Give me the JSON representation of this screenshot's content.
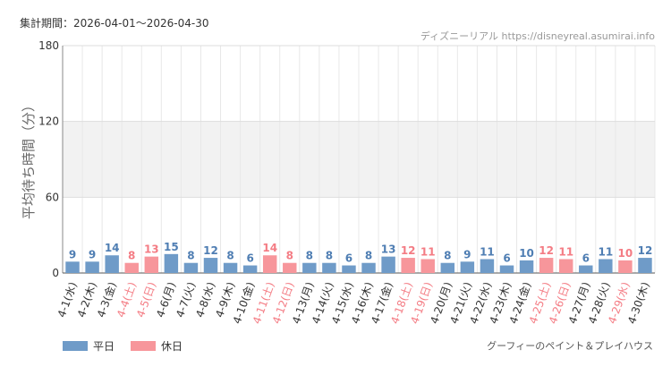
{
  "header": {
    "period_label": "集計期間：2026-04-01～2026-04-30",
    "site_label": "ディズニーリアル https://disneyreal.asumirai.info"
  },
  "footer": {
    "attraction_name": "グーフィーのペイント＆プレイハウス"
  },
  "colors": {
    "weekday": "#6f9bc8",
    "holiday": "#f7969b",
    "weekday_text": "#4f7eb3",
    "holiday_text": "#f47c84"
  },
  "chart_data": {
    "type": "bar",
    "ylabel": "平均待ち時間（分）",
    "ylim": [
      0,
      180
    ],
    "yticks": [
      0,
      60,
      120,
      180
    ],
    "highlight_band": [
      60,
      120
    ],
    "grid": true,
    "legend": {
      "placement": "bottom-left",
      "entries": [
        {
          "key": "weekday",
          "label": "平日"
        },
        {
          "key": "holiday",
          "label": "休日"
        }
      ]
    },
    "categories": [
      "4-1(水)",
      "4-2(木)",
      "4-3(金)",
      "4-4(土)",
      "4-5(日)",
      "4-6(月)",
      "4-7(火)",
      "4-8(水)",
      "4-9(木)",
      "4-10(金)",
      "4-11(土)",
      "4-12(日)",
      "4-13(月)",
      "4-14(火)",
      "4-15(水)",
      "4-16(木)",
      "4-17(金)",
      "4-18(土)",
      "4-19(日)",
      "4-20(月)",
      "4-21(火)",
      "4-22(水)",
      "4-23(木)",
      "4-24(金)",
      "4-25(土)",
      "4-26(日)",
      "4-27(月)",
      "4-28(火)",
      "4-29(水)",
      "4-30(木)"
    ],
    "values": [
      9,
      9,
      14,
      8,
      13,
      15,
      8,
      12,
      8,
      6,
      14,
      8,
      8,
      8,
      6,
      8,
      13,
      12,
      11,
      8,
      9,
      11,
      6,
      10,
      12,
      11,
      6,
      11,
      10,
      12
    ],
    "day_type": [
      "weekday",
      "weekday",
      "weekday",
      "holiday",
      "holiday",
      "weekday",
      "weekday",
      "weekday",
      "weekday",
      "weekday",
      "holiday",
      "holiday",
      "weekday",
      "weekday",
      "weekday",
      "weekday",
      "weekday",
      "holiday",
      "holiday",
      "weekday",
      "weekday",
      "weekday",
      "weekday",
      "weekday",
      "holiday",
      "holiday",
      "weekday",
      "weekday",
      "holiday",
      "weekday"
    ]
  }
}
